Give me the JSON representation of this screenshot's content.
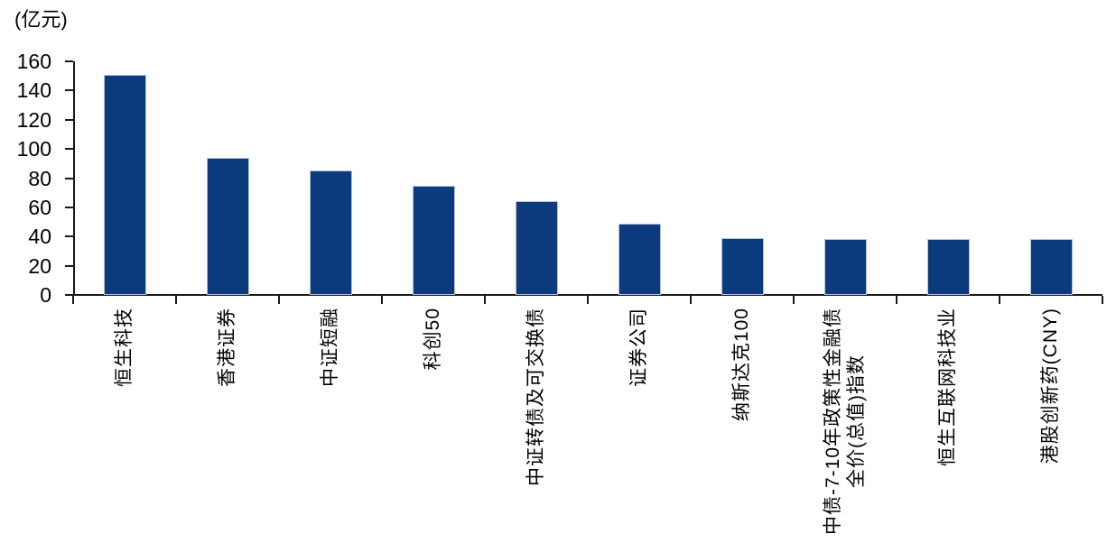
{
  "chart_data": {
    "type": "bar",
    "unit_label": "(亿元)",
    "title": "",
    "xlabel": "",
    "ylabel": "(亿元)",
    "ylim": [
      0,
      160
    ],
    "ytick_interval": 20,
    "yticks": [
      0,
      20,
      40,
      60,
      80,
      100,
      120,
      140,
      160
    ],
    "grid": false,
    "legend": "none",
    "bar_color": "#0b3a7d",
    "axis_color": "#1a1a1a",
    "categories": [
      "恒生科技",
      "香港证券",
      "中证短融",
      "科创50",
      "中证转债及可交换债",
      "证券公司",
      "纳斯达克100",
      "中债-7-10年政策性金融债\n全价(总值)指数",
      "恒生互联网科技业",
      "港股创新药(CNY)"
    ],
    "values": [
      151,
      94,
      85,
      75,
      64,
      49,
      39,
      38,
      38,
      38
    ]
  }
}
